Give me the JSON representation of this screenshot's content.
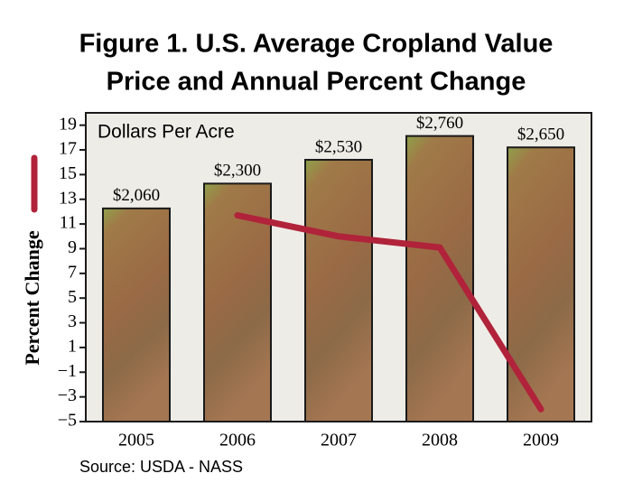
{
  "chart_data": {
    "type": "bar",
    "title": [
      "Figure 1. U.S. Average Cropland Value",
      "Price and Annual Percent Change"
    ],
    "categories": [
      "2005",
      "2006",
      "2007",
      "2008",
      "2009"
    ],
    "bars": {
      "name": "Dollars Per Acre",
      "values": [
        2060,
        2300,
        2530,
        2760,
        2650
      ],
      "value_labels": [
        "$2,060",
        "$2,300",
        "$2,530",
        "$2,760",
        "$2,650"
      ],
      "color": "#9a6a45"
    },
    "line": {
      "values": [
        null,
        11.7,
        10,
        9.1,
        -4
      ],
      "color": "#b0233a"
    },
    "ylabel": "Percent Change",
    "ylim": [
      -5,
      20
    ],
    "yticks": [
      {
        "value": -5,
        "label": "−5"
      },
      {
        "value": -3,
        "label": "−3"
      },
      {
        "value": -1,
        "label": "−1"
      },
      1,
      3,
      5,
      7,
      9,
      11,
      13,
      15,
      17,
      19
    ],
    "source": "Source: USDA - NASS"
  }
}
